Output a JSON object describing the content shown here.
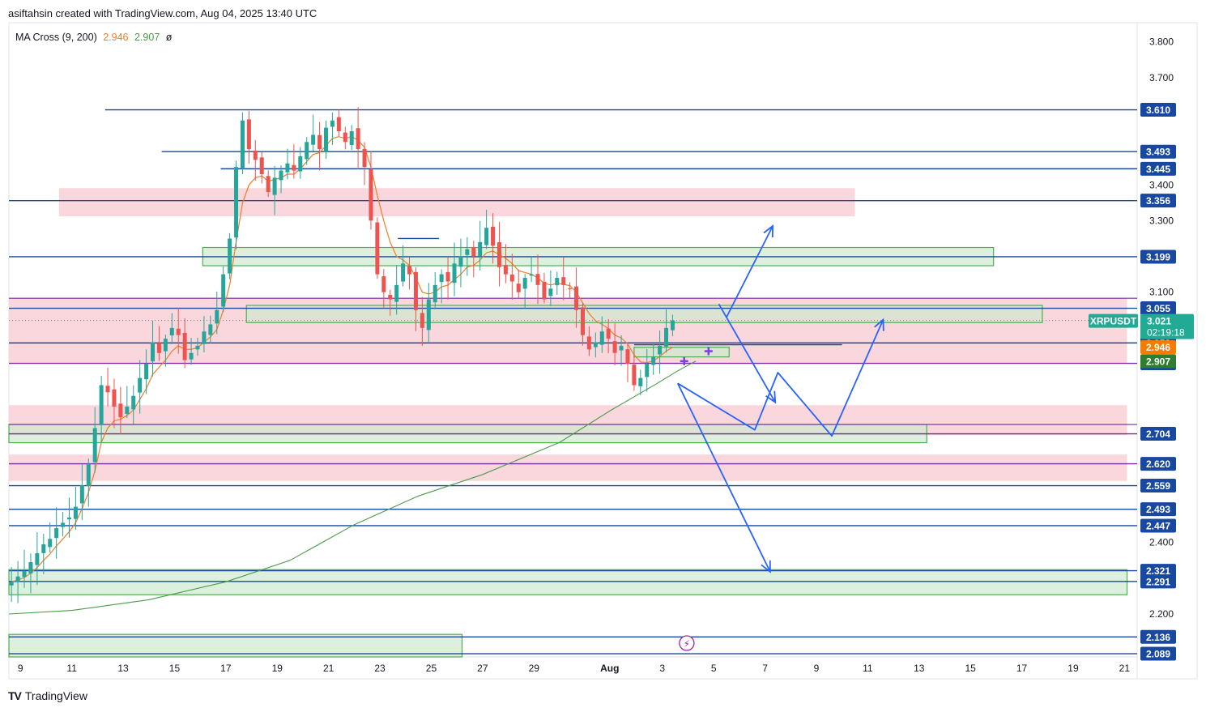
{
  "header": {
    "attribution": "asiftahsin created with TradingView.com, Aug 04, 2025 13:40 UTC"
  },
  "indicator": {
    "name": "MA Cross (9, 200)",
    "fast_value": "2.946",
    "slow_value": "2.907",
    "symbol": "ø"
  },
  "footer": {
    "brand": "TradingView",
    "logo": "TV"
  },
  "colors": {
    "blue_line": "#1848a0",
    "purple_line": "#7b2aa0",
    "red_zone": "#f7c9d0",
    "green_zone": "#cfeacf",
    "green_border": "#4caf50",
    "up_candle": "#26a69a",
    "down_candle": "#ef5350",
    "ma_fast": "#ef7d26",
    "ma_slow": "#4c9a4c",
    "projection": "#2962ff",
    "last_price_bg": "#22ab94",
    "ma_fast_badge": "#f57c00",
    "ma_slow_badge": "#2e7d32"
  },
  "chart_data": {
    "type": "candlestick",
    "symbol": "XRPUSDT",
    "title": "MA Cross (9, 200)",
    "ylim": [
      2.08,
      3.84
    ],
    "y_ticks": [
      "3.800",
      "3.700",
      "3.400",
      "3.300",
      "3.100",
      "2.400",
      "2.200"
    ],
    "x_ticks": [
      "9",
      "11",
      "13",
      "15",
      "17",
      "19",
      "21",
      "23",
      "25",
      "27",
      "29",
      "Aug",
      "3",
      "5",
      "7",
      "9",
      "11",
      "13",
      "15",
      "17",
      "19",
      "21"
    ],
    "x_range_days": [
      8.55,
      52.1
    ],
    "last_price": {
      "label": "XRPUSDT",
      "value": "3.021",
      "countdown": "02:19:18",
      "price": 3.021
    },
    "ma_fast_badge": {
      "value": "2.946",
      "price": 2.946
    },
    "ma_slow_badge": {
      "value": "2.907",
      "price": 2.907
    },
    "horizontal_levels": [
      {
        "value": "3.610",
        "price": 3.61,
        "color": "blue",
        "from_day": 12.3
      },
      {
        "value": "3.493",
        "price": 3.493,
        "color": "blue",
        "from_day": 14.5
      },
      {
        "value": "3.445",
        "price": 3.445,
        "color": "blue",
        "from_day": 16.8
      },
      {
        "value": "3.356",
        "price": 3.356,
        "color": "blue",
        "from_day": 8.55
      },
      {
        "value": "3.199",
        "price": 3.199,
        "color": "blue",
        "from_day": 8.55
      },
      {
        "value": "3.055",
        "price": 3.055,
        "color": "blue",
        "from_day": 8.55
      },
      {
        "value": "2.958",
        "price": 2.958,
        "color": "blue",
        "from_day": 8.55
      },
      {
        "value": "2.901",
        "price": 2.901,
        "color": "purple",
        "from_day": 8.55
      },
      {
        "value": "2.704",
        "price": 2.704,
        "color": "purple",
        "from_day": 8.55
      },
      {
        "value": "2.620",
        "price": 2.62,
        "color": "purple",
        "from_day": 8.55
      },
      {
        "value": "2.559",
        "price": 2.559,
        "color": "blue",
        "from_day": 8.55
      },
      {
        "value": "2.493",
        "price": 2.493,
        "color": "blue",
        "from_day": 8.55
      },
      {
        "value": "2.447",
        "price": 2.447,
        "color": "blue",
        "from_day": 8.55
      },
      {
        "value": "2.321",
        "price": 2.321,
        "color": "blue",
        "from_day": 8.55
      },
      {
        "value": "2.291",
        "price": 2.291,
        "color": "blue",
        "from_day": 8.55
      },
      {
        "value": "2.136",
        "price": 2.136,
        "color": "blue",
        "from_day": 8.55
      },
      {
        "value": "2.089",
        "price": 2.089,
        "color": "blue",
        "from_day": 8.55
      }
    ],
    "extra_lines": [
      {
        "price": 3.083,
        "color": "purple"
      },
      {
        "price": 2.73,
        "color": "purple"
      }
    ],
    "zones": [
      {
        "type": "red",
        "from_day": 8.55,
        "to_day": 52.1,
        "top": 3.083,
        "bottom": 2.901
      },
      {
        "type": "red",
        "from_day": 8.55,
        "to_day": 52.1,
        "top": 2.784,
        "bottom": 2.7
      },
      {
        "type": "red",
        "from_day": 8.55,
        "to_day": 52.1,
        "top": 2.646,
        "bottom": 2.572
      },
      {
        "type": "red",
        "from_day": 10.5,
        "to_day": 41.5,
        "top": 3.391,
        "bottom": 3.312
      },
      {
        "type": "green",
        "from_day": 16.1,
        "to_day": 46.9,
        "top": 3.225,
        "bottom": 3.174
      },
      {
        "type": "green",
        "from_day": 17.8,
        "to_day": 48.8,
        "top": 3.063,
        "bottom": 3.015
      },
      {
        "type": "green",
        "from_day": 32.9,
        "to_day": 36.6,
        "top": 2.946,
        "bottom": 2.919
      },
      {
        "type": "green",
        "from_day": 8.55,
        "to_day": 44.3,
        "top": 2.73,
        "bottom": 2.679
      },
      {
        "type": "green",
        "from_day": 8.55,
        "to_day": 52.1,
        "top": 2.324,
        "bottom": 2.254
      },
      {
        "type": "green",
        "from_day": 8.55,
        "to_day": 26.2,
        "top": 2.143,
        "bottom": 2.08
      }
    ],
    "projections": [
      {
        "points": [
          [
            36.5,
            3.03
          ],
          [
            38.3,
            3.285
          ]
        ],
        "arrow": true
      },
      {
        "points": [
          [
            36.2,
            3.067
          ],
          [
            38.4,
            2.792
          ]
        ],
        "arrow": true
      },
      {
        "points": [
          [
            34.6,
            2.845
          ],
          [
            37.6,
            2.715
          ],
          [
            38.5,
            2.875
          ],
          [
            40.6,
            2.698
          ],
          [
            42.6,
            3.023
          ]
        ],
        "arrow": true
      },
      {
        "points": [
          [
            34.6,
            2.845
          ],
          [
            38.2,
            2.318
          ]
        ],
        "arrow": true
      }
    ],
    "short_lines": [
      {
        "from_day": 32.9,
        "to_day": 41.0,
        "price": 2.953
      },
      {
        "from_day": 23.7,
        "to_day": 25.3,
        "price": 3.25
      }
    ],
    "closes": [
      2.29,
      2.305,
      2.32,
      2.345,
      2.37,
      2.395,
      2.41,
      2.44,
      2.455,
      2.47,
      2.5,
      2.56,
      2.62,
      2.72,
      2.84,
      2.82,
      2.78,
      2.75,
      2.78,
      2.81,
      2.86,
      2.9,
      2.96,
      2.93,
      2.97,
      3.0,
      2.98,
      2.91,
      2.93,
      2.95,
      2.99,
      3.01,
      3.05,
      3.15,
      3.25,
      3.45,
      3.58,
      3.5,
      3.47,
      3.43,
      3.38,
      3.42,
      3.44,
      3.46,
      3.44,
      3.48,
      3.52,
      3.54,
      3.5,
      3.56,
      3.58,
      3.55,
      3.52,
      3.55,
      3.5,
      3.45,
      3.3,
      3.15,
      3.1,
      3.08,
      3.12,
      3.18,
      3.15,
      3.05,
      3.0,
      3.08,
      3.12,
      3.15,
      3.13,
      3.18,
      3.2,
      3.22,
      3.2,
      3.24,
      3.28,
      3.23,
      3.17,
      3.15,
      3.13,
      3.1,
      3.14,
      3.15,
      3.12,
      3.08,
      3.11,
      3.14,
      3.12,
      3.11,
      3.05,
      2.98,
      2.94,
      2.96,
      2.99,
      2.97,
      2.93,
      2.95,
      2.9,
      2.84,
      2.86,
      2.9,
      2.92,
      2.95,
      3.0,
      3.021
    ],
    "ma_fast": [
      2.29,
      2.295,
      2.302,
      2.314,
      2.33,
      2.35,
      2.368,
      2.39,
      2.41,
      2.43,
      2.455,
      2.495,
      2.54,
      2.6,
      2.68,
      2.72,
      2.74,
      2.745,
      2.755,
      2.77,
      2.8,
      2.83,
      2.87,
      2.89,
      2.91,
      2.935,
      2.95,
      2.94,
      2.94,
      2.945,
      2.96,
      2.975,
      2.995,
      3.05,
      3.12,
      3.24,
      3.35,
      3.4,
      3.42,
      3.425,
      3.41,
      3.415,
      3.42,
      3.43,
      3.43,
      3.445,
      3.465,
      3.485,
      3.49,
      3.51,
      3.53,
      3.535,
      3.53,
      3.535,
      3.525,
      3.505,
      3.45,
      3.37,
      3.3,
      3.24,
      3.2,
      3.19,
      3.175,
      3.14,
      3.1,
      3.095,
      3.1,
      3.115,
      3.12,
      3.135,
      3.15,
      3.17,
      3.175,
      3.19,
      3.21,
      3.215,
      3.205,
      3.195,
      3.18,
      3.16,
      3.155,
      3.15,
      3.14,
      3.125,
      3.12,
      3.125,
      3.122,
      3.118,
      3.1,
      3.07,
      3.04,
      3.02,
      3.01,
      2.998,
      2.98,
      2.972,
      2.955,
      2.925,
      2.905,
      2.903,
      2.908,
      2.92,
      2.935,
      2.946
    ],
    "ma_slow_points": [
      [
        8.55,
        2.2
      ],
      [
        11.0,
        2.21
      ],
      [
        14.0,
        2.24
      ],
      [
        17.0,
        2.29
      ],
      [
        19.5,
        2.35
      ],
      [
        22.0,
        2.45
      ],
      [
        24.5,
        2.53
      ],
      [
        27.0,
        2.59
      ],
      [
        30.0,
        2.68
      ],
      [
        32.0,
        2.77
      ],
      [
        33.8,
        2.845
      ],
      [
        34.6,
        2.88
      ],
      [
        35.3,
        2.907
      ]
    ]
  }
}
